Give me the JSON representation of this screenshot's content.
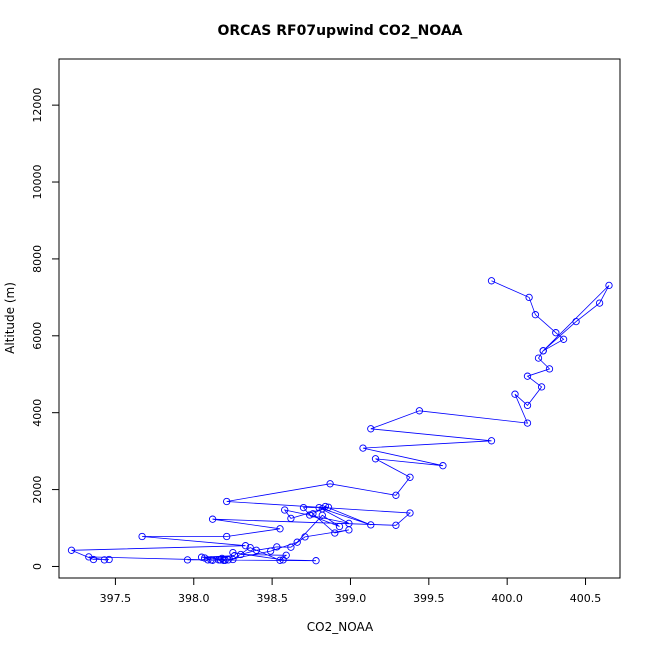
{
  "chart_data": {
    "type": "line",
    "title": "ORCAS RF07upwind CO2_NOAA",
    "xlabel": "CO2_NOAA",
    "ylabel": "Altitude (m)",
    "xlim": [
      397.14,
      400.72
    ],
    "ylim": [
      -300,
      13200
    ],
    "xticks": [
      397.5,
      398.0,
      398.5,
      399.0,
      399.5,
      400.0,
      400.5
    ],
    "xtick_labels": [
      "397.5",
      "398.0",
      "398.5",
      "399.0",
      "399.5",
      "400.0",
      "400.5"
    ],
    "yticks": [
      0,
      2000,
      4000,
      6000,
      8000,
      10000,
      12000
    ],
    "ytick_labels": [
      "0",
      "2000",
      "4000",
      "6000",
      "8000",
      "10000",
      "12000"
    ],
    "series_color": "#0000ff",
    "marker": "open-circle",
    "x": [
      399.9,
      400.14,
      400.18,
      400.31,
      400.36,
      400.23,
      400.44,
      400.59,
      400.65,
      400.23,
      400.2,
      400.27,
      400.13,
      400.22,
      400.13,
      400.05,
      400.13,
      399.44,
      399.13,
      399.9,
      399.08,
      399.59,
      399.16,
      399.38,
      399.29,
      398.87,
      398.21,
      399.38,
      399.29,
      398.12,
      398.55,
      398.21,
      397.67,
      398.33,
      397.22,
      397.36,
      397.46,
      397.43,
      397.33,
      398.2,
      398.49,
      398.66,
      398.82,
      398.93,
      398.74,
      398.7,
      398.86,
      398.62,
      398.58,
      398.99,
      398.8,
      399.13,
      398.84,
      398.82,
      398.76,
      398.9,
      398.99,
      398.71,
      398.62,
      398.53,
      398.4,
      398.3,
      398.59,
      398.55,
      398.36,
      398.25,
      398.19,
      398.17,
      398.22,
      398.05,
      398.26,
      398.07,
      398.12,
      398.18,
      398.16,
      398.09,
      397.96,
      398.2,
      398.11,
      398.78,
      398.57,
      398.25
    ],
    "y": [
      7430,
      7000,
      6550,
      6080,
      5910,
      5610,
      6370,
      6850,
      7310,
      5610,
      5420,
      5140,
      4950,
      4670,
      4190,
      4480,
      3730,
      4050,
      3580,
      3270,
      3080,
      2620,
      2800,
      2320,
      1850,
      2150,
      1690,
      1390,
      1070,
      1230,
      980,
      780,
      780,
      540,
      420,
      180,
      180,
      170,
      250,
      160,
      400,
      630,
      1330,
      1040,
      1340,
      1530,
      1540,
      1250,
      1470,
      1120,
      1530,
      1080,
      1560,
      1500,
      1370,
      870,
      950,
      770,
      500,
      510,
      420,
      310,
      290,
      160,
      490,
      180,
      160,
      170,
      170,
      240,
      280,
      220,
      160,
      210,
      170,
      170,
      170,
      170,
      170,
      150,
      170,
      360
    ]
  }
}
